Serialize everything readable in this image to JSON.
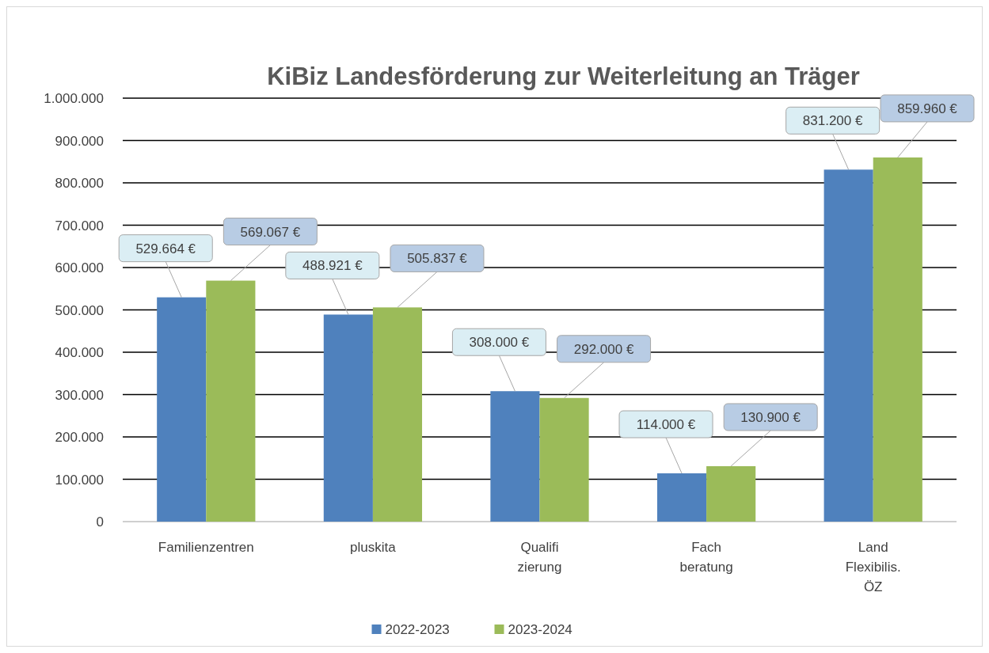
{
  "chart_data": {
    "type": "bar",
    "title": "KiBiz Landesförderung zur Weiterleitung an Träger",
    "categories": [
      "Familienzentren",
      "pluskita",
      "Qualifi\nzierung",
      "Fach\nberatung",
      "Land\nFlexibilis.\nÖZ"
    ],
    "series": [
      {
        "name": "2022-2023",
        "color": "#4f81bd",
        "values": [
          529664,
          488921,
          308000,
          114000,
          831200
        ],
        "value_labels": [
          "529.664 €",
          "488.921 €",
          "308.000 €",
          "114.000 €",
          "831.200 €"
        ]
      },
      {
        "name": "2023-2024",
        "color": "#9bbb59",
        "values": [
          569067,
          505837,
          292000,
          130900,
          859960
        ],
        "value_labels": [
          "569.067 €",
          "505.837 €",
          "292.000 €",
          "130.900 €",
          "859.960 €"
        ]
      }
    ],
    "ylim": [
      0,
      1000000
    ],
    "yticks": [
      0,
      {
        "value": 100000,
        "label": "100.000"
      },
      {
        "value": 200000,
        "label": "200.000"
      },
      {
        "value": 300000,
        "label": "300.000"
      },
      {
        "value": 400000,
        "label": "400.000"
      },
      {
        "value": 500000,
        "label": "500.000"
      },
      {
        "value": 600000,
        "label": "600.000"
      },
      {
        "value": 700000,
        "label": "700.000"
      },
      {
        "value": 800000,
        "label": "800.000"
      },
      {
        "value": 900000,
        "label": "900.000"
      },
      {
        "value": 1000000,
        "label": "1.000.000"
      }
    ],
    "grid": "y",
    "legend": "bottom"
  }
}
